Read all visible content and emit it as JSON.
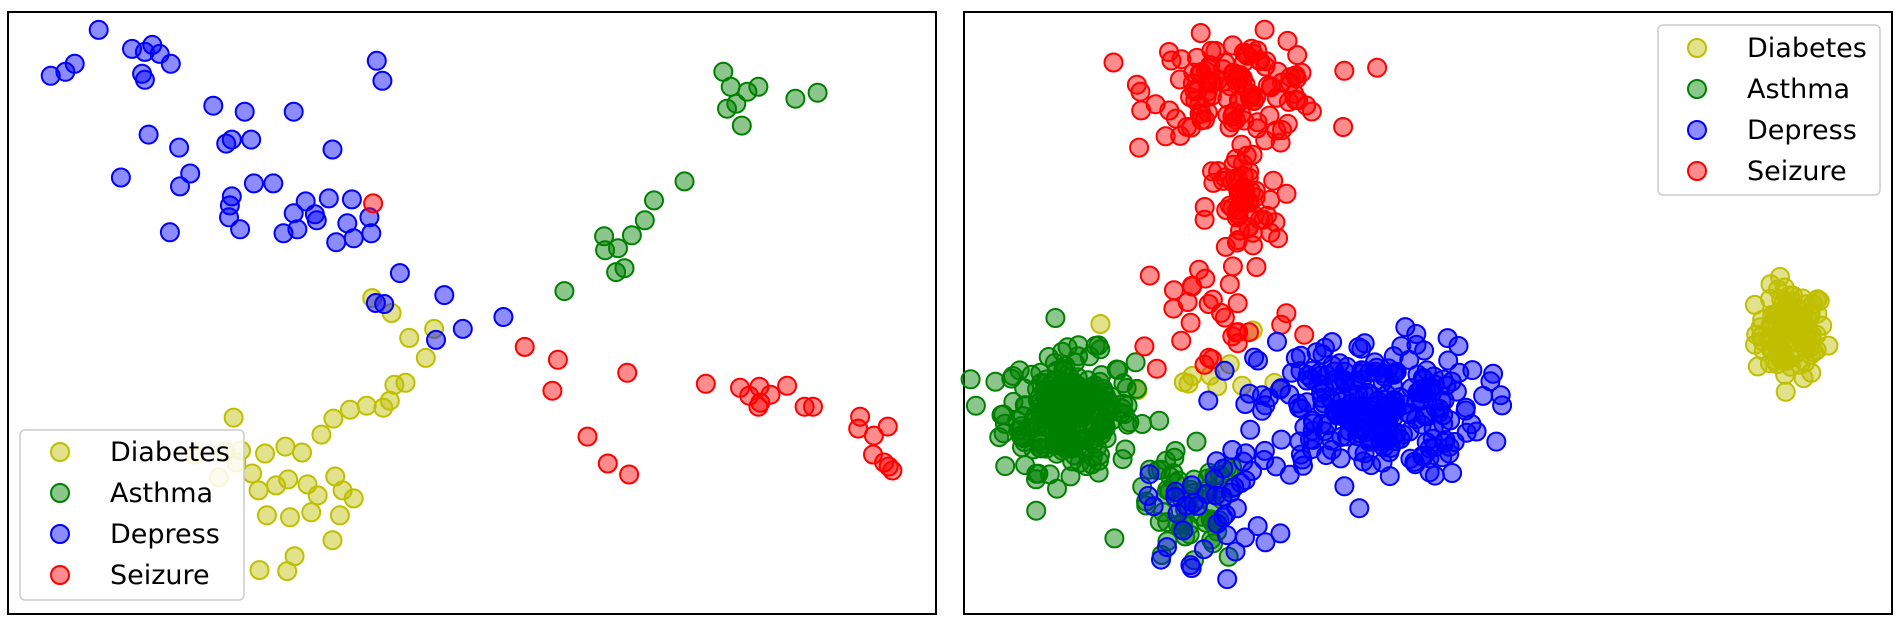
{
  "colors": {
    "Diabetes": "#bfbf00",
    "Asthma": "#008000",
    "Depress": "#0000ff",
    "Seizure": "#ff0000"
  },
  "chart_data": [
    {
      "type": "scatter",
      "title": "",
      "xlabel": "",
      "ylabel": "",
      "xlim": [
        0,
        1000
      ],
      "ylim": [
        0,
        600
      ],
      "grid": false,
      "axes_visible": false,
      "legend_position": "bottom-left",
      "series": [
        {
          "name": "Diabetes",
          "points": [
            [
              392,
              315
            ],
            [
              413,
              300
            ],
            [
              459,
              284
            ],
            [
              432,
              275
            ],
            [
              450,
              255
            ],
            [
              428,
              230
            ],
            [
              416,
              228
            ],
            [
              411,
              212
            ],
            [
              404,
              205
            ],
            [
              386,
              207
            ],
            [
              368,
              203
            ],
            [
              350,
              194
            ],
            [
              337,
              178
            ],
            [
              316,
              160
            ],
            [
              298,
              166
            ],
            [
              276,
              159
            ],
            [
              250,
              162
            ],
            [
              233,
              161
            ],
            [
              262,
              139
            ],
            [
              269,
              122
            ],
            [
              288,
              127
            ],
            [
              301,
              133
            ],
            [
              352,
              136
            ],
            [
              357,
              97
            ],
            [
              326,
              100
            ],
            [
              303,
              95
            ],
            [
              278,
              97
            ],
            [
              349,
              72
            ],
            [
              308,
              56
            ],
            [
              300,
              41
            ],
            [
              270,
              42
            ],
            [
              372,
              114
            ],
            [
              360,
              122
            ],
            [
              322,
              128
            ],
            [
              333,
              117
            ],
            [
              242,
              195
            ],
            [
              200,
              158
            ],
            [
              226,
              135
            ],
            [
              245,
              150
            ]
          ]
        },
        {
          "name": "Asthma",
          "points": [
            [
              772,
              542
            ],
            [
              780,
              527
            ],
            [
              798,
              522
            ],
            [
              786,
              510
            ],
            [
              810,
              527
            ],
            [
              850,
              515
            ],
            [
              874,
              521
            ],
            [
              776,
              505
            ],
            [
              792,
              488
            ],
            [
              730,
              432
            ],
            [
              697,
              413
            ],
            [
              687,
              393
            ],
            [
              673,
              378
            ],
            [
              658,
              365
            ],
            [
              644,
              363
            ],
            [
              656,
              341
            ],
            [
              600,
              322
            ],
            [
              643,
              377
            ],
            [
              665,
              345
            ]
          ]
        },
        {
          "name": "Depress",
          "points": [
            [
              96,
              584
            ],
            [
              132,
              565
            ],
            [
              60,
              542
            ],
            [
              44,
              538
            ],
            [
              70,
              550
            ],
            [
              146,
              562
            ],
            [
              162,
              560
            ],
            [
              154,
              569
            ],
            [
              174,
              550
            ],
            [
              143,
              540
            ],
            [
              146,
              534
            ],
            [
              220,
              508
            ],
            [
              254,
              502
            ],
            [
              307,
              502
            ],
            [
              150,
              479
            ],
            [
              183,
              466
            ],
            [
              261,
              474
            ],
            [
              240,
              474
            ],
            [
              349,
              464
            ],
            [
              234,
              470
            ],
            [
              195,
              440
            ],
            [
              120,
              436
            ],
            [
              184,
              427
            ],
            [
              264,
              430
            ],
            [
              285,
              430
            ],
            [
              320,
              412
            ],
            [
              345,
              415
            ],
            [
              240,
              417
            ],
            [
              370,
              414
            ],
            [
              237,
              396
            ],
            [
              307,
              400
            ],
            [
              330,
              399
            ],
            [
              311,
              384
            ],
            [
              332,
              393
            ],
            [
              389,
              396
            ],
            [
              365,
              390
            ],
            [
              372,
              375
            ],
            [
              353,
              371
            ],
            [
              296,
              380
            ],
            [
              391,
              380
            ],
            [
              238,
              408
            ],
            [
              249,
              384
            ],
            [
              173,
              381
            ],
            [
              422,
              340
            ],
            [
              470,
              318
            ],
            [
              490,
              284
            ],
            [
              534,
              296
            ],
            [
              461,
              273
            ],
            [
              405,
              309
            ],
            [
              396,
              310
            ],
            [
              403,
              533
            ],
            [
              397,
              553
            ]
          ]
        },
        {
          "name": "Seizure",
          "points": [
            [
              393,
              410
            ],
            [
              557,
              266
            ],
            [
              593,
              253
            ],
            [
              668,
              240
            ],
            [
              753,
              229
            ],
            [
              790,
              225
            ],
            [
              811,
              226
            ],
            [
              841,
              227
            ],
            [
              587,
              222
            ],
            [
              800,
              217
            ],
            [
              810,
              206
            ],
            [
              812,
              210
            ],
            [
              823,
              218
            ],
            [
              869,
              206
            ],
            [
              860,
              206
            ],
            [
              920,
              196
            ],
            [
              950,
              186
            ],
            [
              918,
              184
            ],
            [
              935,
              177
            ],
            [
              946,
              150
            ],
            [
              934,
              158
            ],
            [
              955,
              142
            ],
            [
              951,
              146
            ],
            [
              625,
              176
            ],
            [
              647,
              149
            ],
            [
              670,
              138
            ]
          ]
        }
      ]
    },
    {
      "type": "scatter",
      "title": "",
      "xlabel": "",
      "ylabel": "",
      "xlim": [
        0,
        1000
      ],
      "ylim": [
        0,
        600
      ],
      "grid": false,
      "axes_visible": false,
      "legend_position": "top-right",
      "clusters": [
        {
          "name": "Diabetes",
          "center": [
            893,
            280
          ],
          "spread": [
            38,
            45
          ],
          "count": 110
        },
        {
          "name": "Asthma",
          "center": [
            112,
            200
          ],
          "spread": [
            70,
            58
          ],
          "count": 260
        },
        {
          "name": "Asthma",
          "center": [
            240,
            100
          ],
          "spread": [
            60,
            58
          ],
          "count": 60
        },
        {
          "name": "Depress",
          "center": [
            437,
            204
          ],
          "spread": [
            120,
            70
          ],
          "count": 270
        },
        {
          "name": "Depress",
          "center": [
            265,
            105
          ],
          "spread": [
            70,
            55
          ],
          "count": 40
        },
        {
          "name": "Seizure",
          "center": [
            295,
            527
          ],
          "spread": [
            95,
            48
          ],
          "count": 120
        },
        {
          "name": "Seizure",
          "center": [
            300,
            405
          ],
          "spread": [
            40,
            65
          ],
          "count": 60
        },
        {
          "name": "Seizure",
          "center": [
            270,
            300
          ],
          "spread": [
            90,
            70
          ],
          "count": 30
        },
        {
          "name": "Diabetes",
          "center": [
            230,
            240
          ],
          "spread": [
            110,
            90
          ],
          "count": 12
        }
      ]
    }
  ]
}
